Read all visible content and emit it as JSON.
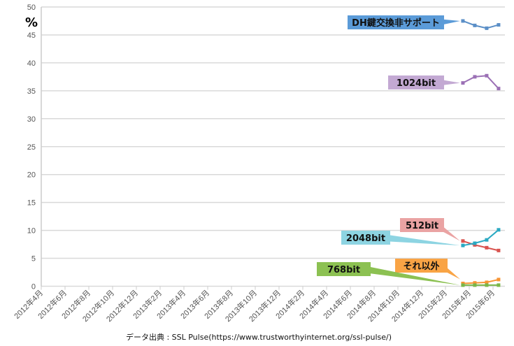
{
  "chart_data": {
    "type": "line",
    "title": "",
    "ylabel": "%",
    "ylim": [
      0,
      50
    ],
    "yticks": [
      0,
      5,
      10,
      15,
      20,
      25,
      30,
      35,
      40,
      45,
      50
    ],
    "xlim": [
      "2012-04",
      "2015-06"
    ],
    "xtick_labels": [
      "2012年4月",
      "2012年6月",
      "2012年8月",
      "2012年10月",
      "2012年12月",
      "2013年2月",
      "2013年4月",
      "2013年6月",
      "2013年8月",
      "2013年10月",
      "2013年12月",
      "2014年2月",
      "2014年4月",
      "2014年6月",
      "2014年8月",
      "2014年10月",
      "2014年12月",
      "2015年2月",
      "2015年4月",
      "2015年6月"
    ],
    "grid": true,
    "x": [
      "2015-03-15",
      "2015-04-15",
      "2015-05-15",
      "2015-06-15"
    ],
    "series": [
      {
        "name": "DH鍵交換非サポート",
        "color": "#5b8fc7",
        "label_color": "#5b9bd8",
        "values": [
          47.5,
          46.7,
          46.2,
          46.8
        ]
      },
      {
        "name": "1024bit",
        "color": "#9b70b5",
        "label_color": "#c3a9d3",
        "values": [
          36.4,
          37.5,
          37.7,
          35.4
        ]
      },
      {
        "name": "512bit",
        "color": "#d9534f",
        "label_color": "#eaa3a3",
        "values": [
          8.1,
          7.4,
          6.9,
          6.4
        ]
      },
      {
        "name": "2048bit",
        "color": "#2aa9c2",
        "label_color": "#8dd4e2",
        "values": [
          7.3,
          7.7,
          8.3,
          10.1
        ]
      },
      {
        "name": "それ以外",
        "color": "#f79433",
        "label_color": "#f9a445",
        "values": [
          0.5,
          0.6,
          0.7,
          1.2
        ]
      },
      {
        "name": "768bit",
        "color": "#7ab648",
        "label_color": "#8cc152",
        "values": [
          0.2,
          0.2,
          0.2,
          0.2
        ]
      }
    ],
    "source": "データ出典 : SSL Pulse(https://www.trustworthyinternet.org/ssl-pulse/)"
  }
}
